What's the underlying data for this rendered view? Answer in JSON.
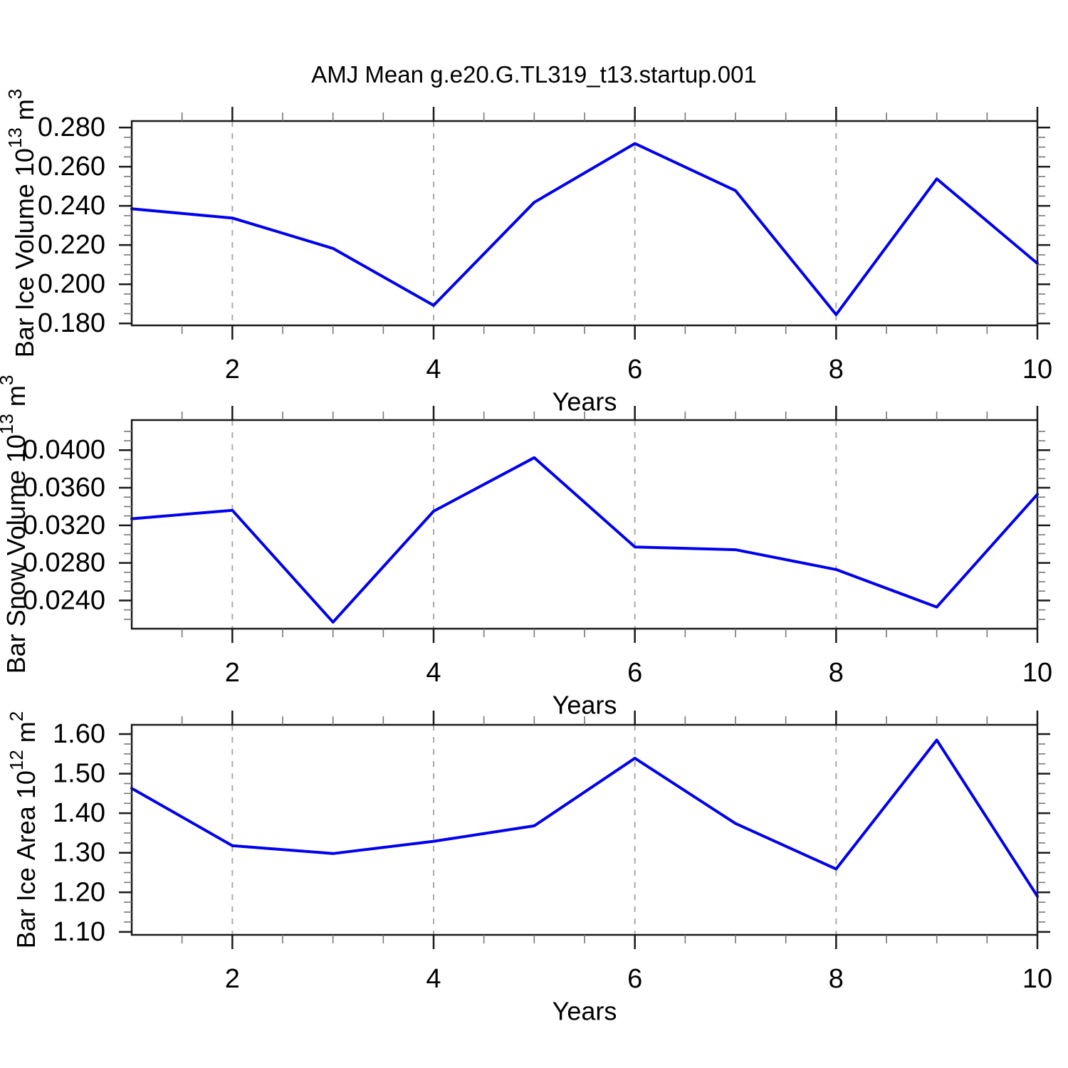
{
  "title": "AMJ Mean g.e20.G.TL319_t13.startup.001",
  "colors": {
    "background": "#FFFFFF",
    "line": "#0000EE",
    "grid": "#A9A9A9",
    "frame": "#1A1A1A",
    "tick_major": "#1A1A1A",
    "tick_minor": "#777777",
    "text": "#000000"
  },
  "chart_data": [
    {
      "type": "line",
      "name": "bar-ice-volume",
      "xlabel": "Years",
      "ylabel": "Bar Ice Volume 10^13 m^3",
      "ylabel_parts": [
        {
          "text": "Bar Ice Volume 10",
          "sup": false
        },
        {
          "text": "13",
          "sup": true
        },
        {
          "text": " m",
          "sup": false
        },
        {
          "text": "3",
          "sup": true
        }
      ],
      "x": [
        1,
        2,
        3,
        4,
        5,
        6,
        7,
        8,
        9,
        10
      ],
      "values": [
        0.2385,
        0.2338,
        0.2183,
        0.1892,
        0.2418,
        0.2718,
        0.2478,
        0.1845,
        0.2538,
        0.2106
      ],
      "xlim": [
        1,
        10
      ],
      "ylim": [
        0.179,
        0.2833
      ],
      "xticks": [
        2,
        4,
        6,
        8,
        10
      ],
      "xtick_labels": [
        "2",
        "4",
        "6",
        "8",
        "10"
      ],
      "x_minor_step": 0.5,
      "yticks": [
        0.18,
        0.2,
        0.22,
        0.24,
        0.26,
        0.28
      ],
      "ytick_labels": [
        "0.180",
        "0.200",
        "0.220",
        "0.240",
        "0.260",
        "0.280"
      ],
      "y_minor_step": 0.005,
      "grid_x": [
        2,
        4,
        6,
        8
      ],
      "grid_on": true,
      "legend": "none"
    },
    {
      "type": "line",
      "name": "bar-snow-volume",
      "xlabel": "Years",
      "ylabel": "Bar Snow Volume 10^13 m^3",
      "ylabel_parts": [
        {
          "text": "Bar Snow Volume 10",
          "sup": false
        },
        {
          "text": "13",
          "sup": true
        },
        {
          "text": " m",
          "sup": false
        },
        {
          "text": "3",
          "sup": true
        }
      ],
      "x": [
        1,
        2,
        3,
        4,
        5,
        6,
        7,
        8,
        9,
        10
      ],
      "values": [
        0.0327,
        0.0336,
        0.0217,
        0.0335,
        0.0392,
        0.0297,
        0.0294,
        0.0273,
        0.0233,
        0.0353
      ],
      "xlim": [
        1,
        10
      ],
      "ylim": [
        0.021,
        0.0432
      ],
      "xticks": [
        2,
        4,
        6,
        8,
        10
      ],
      "xtick_labels": [
        "2",
        "4",
        "6",
        "8",
        "10"
      ],
      "x_minor_step": 0.5,
      "yticks": [
        0.024,
        0.028,
        0.032,
        0.036,
        0.04
      ],
      "ytick_labels": [
        "0.0240",
        "0.0280",
        "0.0320",
        "0.0360",
        "0.0400"
      ],
      "y_minor_step": 0.001,
      "grid_x": [
        2,
        4,
        6,
        8
      ],
      "grid_on": true,
      "legend": "none"
    },
    {
      "type": "line",
      "name": "bar-ice-area",
      "xlabel": "Years",
      "ylabel": "Bar Ice Area 10^12 m^2",
      "ylabel_parts": [
        {
          "text": "Bar Ice Area 10",
          "sup": false
        },
        {
          "text": "12",
          "sup": true
        },
        {
          "text": " m",
          "sup": false
        },
        {
          "text": "2",
          "sup": true
        }
      ],
      "x": [
        1,
        2,
        3,
        4,
        5,
        6,
        7,
        8,
        9,
        10
      ],
      "values": [
        1.463,
        1.318,
        1.298,
        1.329,
        1.368,
        1.539,
        1.374,
        1.259,
        1.585,
        1.19
      ],
      "xlim": [
        1,
        10
      ],
      "ylim": [
        1.0925,
        1.6235
      ],
      "xticks": [
        2,
        4,
        6,
        8,
        10
      ],
      "xtick_labels": [
        "2",
        "4",
        "6",
        "8",
        "10"
      ],
      "x_minor_step": 0.5,
      "yticks": [
        1.1,
        1.2,
        1.3,
        1.4,
        1.5,
        1.6
      ],
      "ytick_labels": [
        "1.10",
        "1.20",
        "1.30",
        "1.40",
        "1.50",
        "1.60"
      ],
      "y_minor_step": 0.025,
      "grid_x": [
        2,
        4,
        6,
        8
      ],
      "grid_on": true,
      "legend": "none"
    }
  ]
}
